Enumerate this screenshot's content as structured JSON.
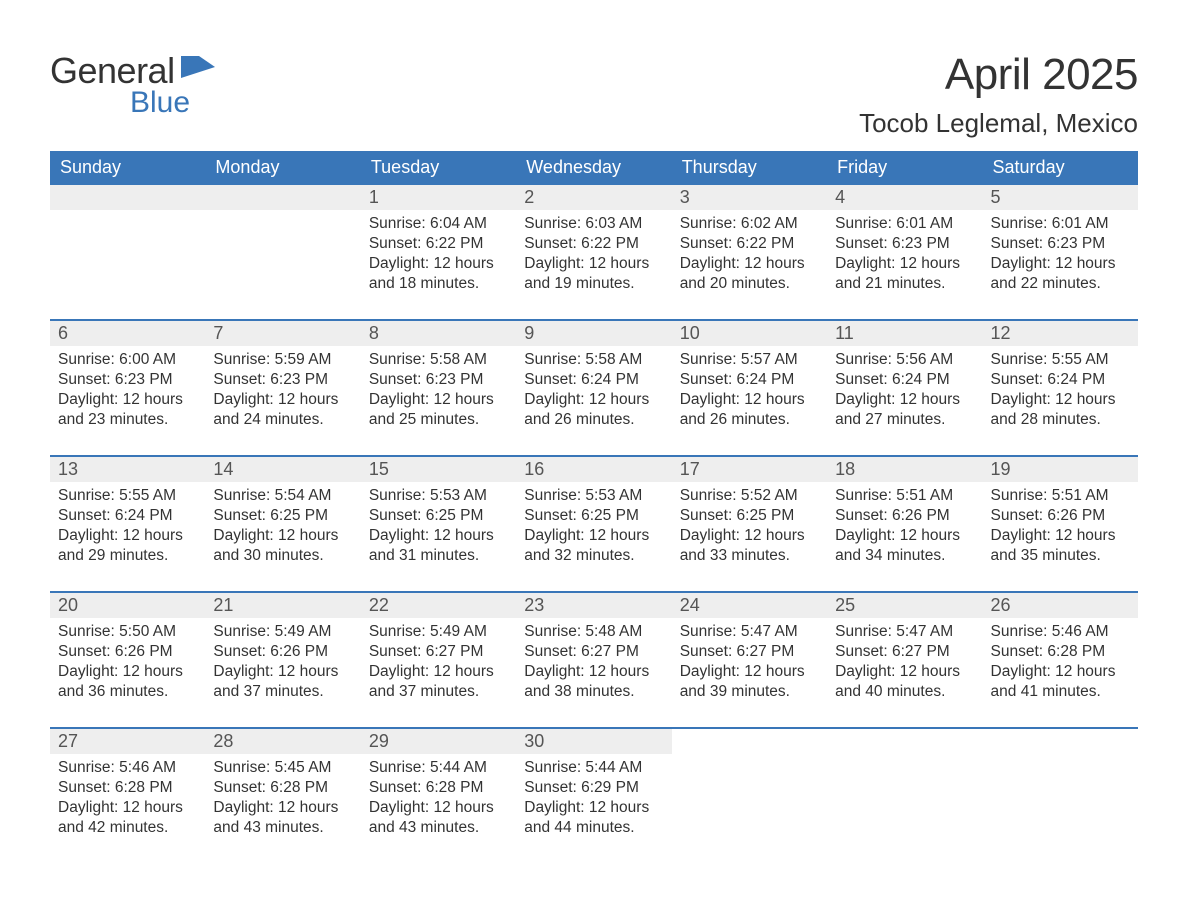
{
  "logo": {
    "text1": "General",
    "text2": "Blue",
    "flag_color": "#3976b8"
  },
  "title": "April 2025",
  "location": "Tocob Leglemal, Mexico",
  "colors": {
    "header_bg": "#3976b8",
    "header_text": "#ffffff",
    "daynum_bg": "#eeeeee",
    "daynum_text": "#555555",
    "body_text": "#333333",
    "page_bg": "#ffffff"
  },
  "fonts": {
    "title_pt": 44,
    "location_pt": 26,
    "dayheader_pt": 18,
    "daynum_pt": 18,
    "body_pt": 15.5
  },
  "day_headers": [
    "Sunday",
    "Monday",
    "Tuesday",
    "Wednesday",
    "Thursday",
    "Friday",
    "Saturday"
  ],
  "weeks": [
    [
      null,
      null,
      {
        "n": "1",
        "sunrise": "6:04 AM",
        "sunset": "6:22 PM",
        "daylight": "12 hours and 18 minutes."
      },
      {
        "n": "2",
        "sunrise": "6:03 AM",
        "sunset": "6:22 PM",
        "daylight": "12 hours and 19 minutes."
      },
      {
        "n": "3",
        "sunrise": "6:02 AM",
        "sunset": "6:22 PM",
        "daylight": "12 hours and 20 minutes."
      },
      {
        "n": "4",
        "sunrise": "6:01 AM",
        "sunset": "6:23 PM",
        "daylight": "12 hours and 21 minutes."
      },
      {
        "n": "5",
        "sunrise": "6:01 AM",
        "sunset": "6:23 PM",
        "daylight": "12 hours and 22 minutes."
      }
    ],
    [
      {
        "n": "6",
        "sunrise": "6:00 AM",
        "sunset": "6:23 PM",
        "daylight": "12 hours and 23 minutes."
      },
      {
        "n": "7",
        "sunrise": "5:59 AM",
        "sunset": "6:23 PM",
        "daylight": "12 hours and 24 minutes."
      },
      {
        "n": "8",
        "sunrise": "5:58 AM",
        "sunset": "6:23 PM",
        "daylight": "12 hours and 25 minutes."
      },
      {
        "n": "9",
        "sunrise": "5:58 AM",
        "sunset": "6:24 PM",
        "daylight": "12 hours and 26 minutes."
      },
      {
        "n": "10",
        "sunrise": "5:57 AM",
        "sunset": "6:24 PM",
        "daylight": "12 hours and 26 minutes."
      },
      {
        "n": "11",
        "sunrise": "5:56 AM",
        "sunset": "6:24 PM",
        "daylight": "12 hours and 27 minutes."
      },
      {
        "n": "12",
        "sunrise": "5:55 AM",
        "sunset": "6:24 PM",
        "daylight": "12 hours and 28 minutes."
      }
    ],
    [
      {
        "n": "13",
        "sunrise": "5:55 AM",
        "sunset": "6:24 PM",
        "daylight": "12 hours and 29 minutes."
      },
      {
        "n": "14",
        "sunrise": "5:54 AM",
        "sunset": "6:25 PM",
        "daylight": "12 hours and 30 minutes."
      },
      {
        "n": "15",
        "sunrise": "5:53 AM",
        "sunset": "6:25 PM",
        "daylight": "12 hours and 31 minutes."
      },
      {
        "n": "16",
        "sunrise": "5:53 AM",
        "sunset": "6:25 PM",
        "daylight": "12 hours and 32 minutes."
      },
      {
        "n": "17",
        "sunrise": "5:52 AM",
        "sunset": "6:25 PM",
        "daylight": "12 hours and 33 minutes."
      },
      {
        "n": "18",
        "sunrise": "5:51 AM",
        "sunset": "6:26 PM",
        "daylight": "12 hours and 34 minutes."
      },
      {
        "n": "19",
        "sunrise": "5:51 AM",
        "sunset": "6:26 PM",
        "daylight": "12 hours and 35 minutes."
      }
    ],
    [
      {
        "n": "20",
        "sunrise": "5:50 AM",
        "sunset": "6:26 PM",
        "daylight": "12 hours and 36 minutes."
      },
      {
        "n": "21",
        "sunrise": "5:49 AM",
        "sunset": "6:26 PM",
        "daylight": "12 hours and 37 minutes."
      },
      {
        "n": "22",
        "sunrise": "5:49 AM",
        "sunset": "6:27 PM",
        "daylight": "12 hours and 37 minutes."
      },
      {
        "n": "23",
        "sunrise": "5:48 AM",
        "sunset": "6:27 PM",
        "daylight": "12 hours and 38 minutes."
      },
      {
        "n": "24",
        "sunrise": "5:47 AM",
        "sunset": "6:27 PM",
        "daylight": "12 hours and 39 minutes."
      },
      {
        "n": "25",
        "sunrise": "5:47 AM",
        "sunset": "6:27 PM",
        "daylight": "12 hours and 40 minutes."
      },
      {
        "n": "26",
        "sunrise": "5:46 AM",
        "sunset": "6:28 PM",
        "daylight": "12 hours and 41 minutes."
      }
    ],
    [
      {
        "n": "27",
        "sunrise": "5:46 AM",
        "sunset": "6:28 PM",
        "daylight": "12 hours and 42 minutes."
      },
      {
        "n": "28",
        "sunrise": "5:45 AM",
        "sunset": "6:28 PM",
        "daylight": "12 hours and 43 minutes."
      },
      {
        "n": "29",
        "sunrise": "5:44 AM",
        "sunset": "6:28 PM",
        "daylight": "12 hours and 43 minutes."
      },
      {
        "n": "30",
        "sunrise": "5:44 AM",
        "sunset": "6:29 PM",
        "daylight": "12 hours and 44 minutes."
      },
      null,
      null,
      null
    ]
  ],
  "labels": {
    "sunrise": "Sunrise: ",
    "sunset": "Sunset: ",
    "daylight": "Daylight: "
  }
}
